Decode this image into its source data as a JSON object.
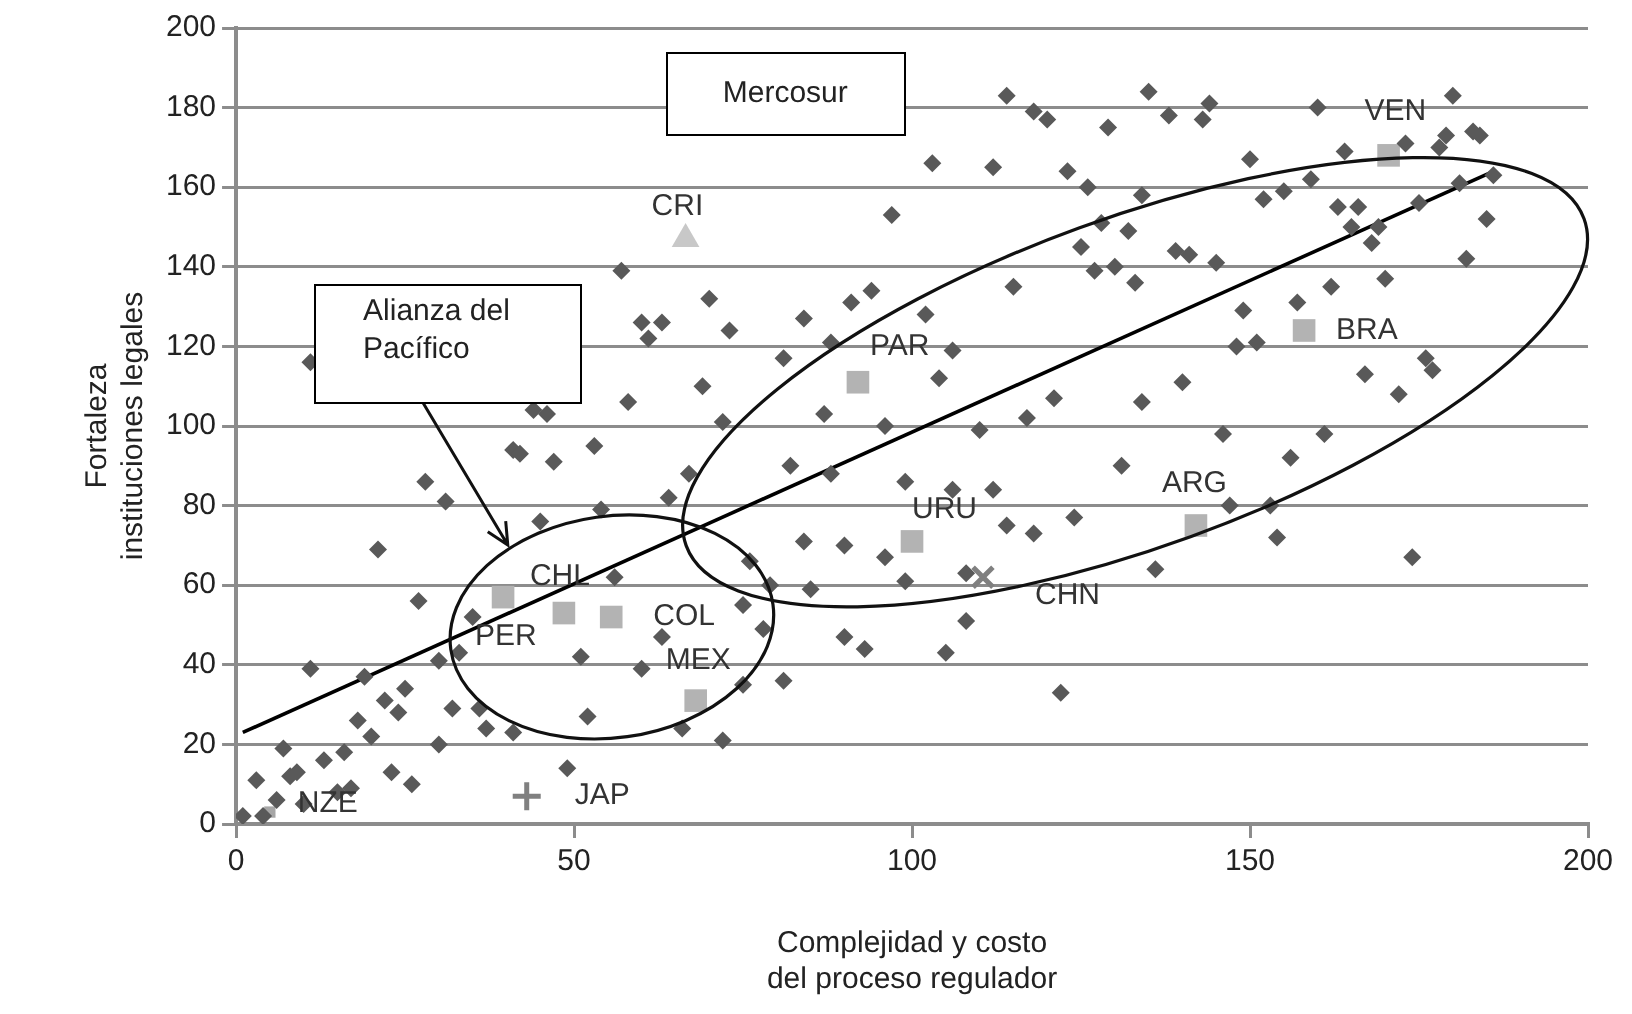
{
  "chart_data": {
    "type": "scatter",
    "xlabel": "Complejidad y costo\ndel proceso regulador",
    "ylabel": "Fortaleza\ninstituciones legales",
    "xlim": [
      0,
      200
    ],
    "xticks": [
      0,
      50,
      100,
      150,
      200
    ],
    "ylim": [
      0,
      200
    ],
    "yticks": [
      0,
      20,
      40,
      60,
      80,
      100,
      120,
      140,
      160,
      180,
      200
    ],
    "grid": "y",
    "legend": false,
    "annotations": [
      "Mercosur",
      "Alianza del Pacífico"
    ],
    "series": [
      {
        "type": "scatter",
        "color": "#595959",
        "marker": "diamond",
        "x": [
          1,
          3,
          4,
          6,
          7,
          8,
          9,
          10,
          11,
          11,
          13,
          15,
          16,
          17,
          18,
          19,
          20,
          21,
          22,
          23,
          24,
          25,
          26,
          27,
          28,
          30,
          30,
          31,
          32,
          33,
          35,
          36,
          37,
          41,
          41,
          42,
          44,
          45,
          46,
          47,
          49,
          51,
          52,
          53,
          54,
          56,
          57,
          58,
          60,
          60,
          61,
          63,
          63,
          64,
          66,
          67,
          69,
          70,
          72,
          72,
          73,
          75,
          75,
          76,
          78,
          79,
          81,
          81,
          82,
          84,
          84,
          85,
          87,
          88,
          88,
          90,
          90,
          91,
          93,
          94,
          96,
          96,
          97,
          99,
          99,
          102,
          103,
          104,
          105,
          106,
          106,
          108,
          108,
          110,
          112,
          112,
          114,
          114,
          115,
          117,
          118,
          118,
          120,
          121,
          122,
          123,
          124,
          125,
          126,
          127,
          128,
          129,
          130,
          131,
          132,
          133,
          134,
          134,
          135,
          136,
          138,
          139,
          140,
          141,
          143,
          144,
          145,
          146,
          147,
          148,
          149,
          150,
          151,
          152,
          153,
          154,
          155,
          156,
          157,
          159,
          160,
          161,
          162,
          163,
          164,
          165,
          166,
          167,
          168,
          169,
          170,
          172,
          173,
          174,
          175,
          176,
          177,
          178,
          179,
          180,
          181,
          182,
          183,
          184,
          185,
          186
        ],
        "values": [
          2,
          11,
          2,
          6,
          19,
          12,
          13,
          5,
          39,
          116,
          16,
          8,
          18,
          9,
          26,
          37,
          22,
          69,
          31,
          13,
          28,
          34,
          10,
          56,
          86,
          41,
          20,
          81,
          29,
          43,
          52,
          29,
          24,
          23,
          94,
          93,
          104,
          76,
          103,
          91,
          14,
          42,
          27,
          95,
          79,
          62,
          139,
          106,
          126,
          39,
          122,
          126,
          47,
          82,
          24,
          88,
          110,
          132,
          21,
          101,
          124,
          35,
          55,
          66,
          49,
          60,
          117,
          36,
          90,
          127,
          71,
          59,
          103,
          88,
          121,
          47,
          70,
          131,
          44,
          134,
          67,
          100,
          153,
          86,
          61,
          128,
          166,
          112,
          43,
          119,
          84,
          63,
          51,
          99,
          165,
          84,
          183,
          75,
          135,
          102,
          73,
          179,
          177,
          107,
          33,
          164,
          77,
          145,
          160,
          139,
          151,
          175,
          140,
          90,
          149,
          136,
          106,
          158,
          184,
          64,
          178,
          144,
          111,
          143,
          177,
          181,
          141,
          98,
          80,
          120,
          129,
          167,
          121,
          157,
          80,
          72,
          159,
          92,
          131,
          162,
          180,
          98,
          135,
          155,
          169,
          150,
          155,
          113,
          146,
          150,
          137,
          108,
          171,
          67,
          156,
          117,
          114,
          170,
          173,
          183,
          161,
          142,
          174,
          173,
          152,
          163
        ]
      },
      {
        "type": "scatter",
        "name": "CRI",
        "color": "#c8c8c8",
        "marker": "triangle",
        "x": [
          66.5
        ],
        "values": [
          147
        ]
      },
      {
        "type": "scatter",
        "name": "PAR",
        "color": "#b3b3b3",
        "marker": "square",
        "x": [
          92
        ],
        "values": [
          111
        ]
      },
      {
        "type": "scatter",
        "name": "URU",
        "color": "#b3b3b3",
        "marker": "square",
        "x": [
          100
        ],
        "values": [
          71
        ]
      },
      {
        "type": "scatter",
        "name": "ARG",
        "color": "#b3b3b3",
        "marker": "square",
        "x": [
          142
        ],
        "values": [
          75
        ]
      },
      {
        "type": "scatter",
        "name": "BRA",
        "color": "#b3b3b3",
        "marker": "square",
        "x": [
          158
        ],
        "values": [
          124
        ]
      },
      {
        "type": "scatter",
        "name": "VEN",
        "color": "#b3b3b3",
        "marker": "square",
        "x": [
          170.5
        ],
        "values": [
          168
        ]
      },
      {
        "type": "scatter",
        "name": "PER",
        "color": "#b3b3b3",
        "marker": "square",
        "x": [
          39.5
        ],
        "values": [
          57
        ]
      },
      {
        "type": "scatter",
        "name": "CHL",
        "color": "#b3b3b3",
        "marker": "square",
        "x": [
          48.5
        ],
        "values": [
          53
        ]
      },
      {
        "type": "scatter",
        "name": "COL",
        "color": "#b3b3b3",
        "marker": "square",
        "x": [
          55.5
        ],
        "values": [
          52
        ]
      },
      {
        "type": "scatter",
        "name": "MEX",
        "color": "#b3b3b3",
        "marker": "square",
        "x": [
          68
        ],
        "values": [
          31
        ]
      },
      {
        "type": "scatter",
        "name": "CHN",
        "color": "#808080",
        "marker": "cross",
        "x": [
          110.5
        ],
        "values": [
          62
        ]
      },
      {
        "type": "scatter",
        "name": "JAP",
        "color": "#808080",
        "marker": "cross",
        "x": [
          43
        ],
        "values": [
          7
        ]
      },
      {
        "type": "scatter",
        "name": "NZE",
        "color": "#a6a6a6",
        "marker": "square",
        "x": [
          5
        ],
        "values": [
          3
        ]
      },
      {
        "type": "line",
        "color": "#000000",
        "marker": "none",
        "line_style": "solid",
        "x": [
          1,
          186
        ],
        "values": [
          23,
          164
        ]
      }
    ]
  }
}
